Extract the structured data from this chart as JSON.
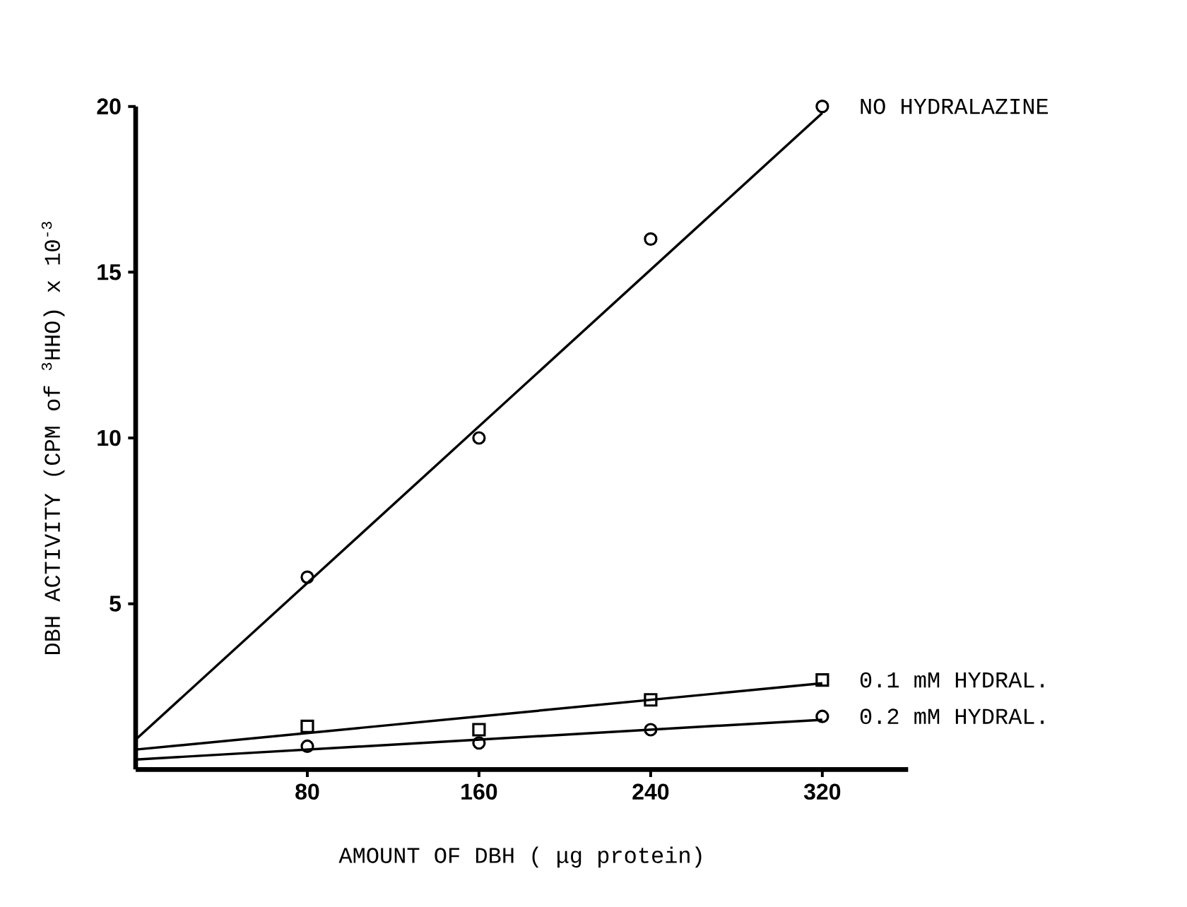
{
  "chart_data": {
    "type": "scatter",
    "xlabel": "AMOUNT OF DBH ( μg protein)",
    "ylabel": "DBH ACTIVITY (CPM of $^{3}$HHO) x 10$^{-3}$",
    "xlim": [
      0,
      360
    ],
    "ylim": [
      0,
      20
    ],
    "xticks": [
      80,
      160,
      240,
      320
    ],
    "yticks": [
      5,
      10,
      15,
      20
    ],
    "series": [
      {
        "name": "NO HYDRALAZINE",
        "marker": "circle",
        "color": "#000000",
        "x": [
          80,
          160,
          240,
          320
        ],
        "values": [
          5.8,
          10,
          16,
          20
        ]
      },
      {
        "name": "0.1 mM HYDRAL.",
        "marker": "square",
        "color": "#000000",
        "x": [
          80,
          160,
          240,
          320
        ],
        "values": [
          1.3,
          1.2,
          2.1,
          2.7
        ]
      },
      {
        "name": "0.2 mM HYDRAL.",
        "marker": "circle",
        "color": "#000000",
        "x": [
          80,
          160,
          240,
          320
        ],
        "values": [
          0.7,
          0.8,
          1.2,
          1.6
        ]
      },
      {
        "type": "line",
        "marker": "none",
        "color": "#000000",
        "x": [
          0,
          320
        ],
        "values": [
          0.9,
          19.8
        ]
      },
      {
        "type": "line",
        "marker": "none",
        "color": "#000000",
        "x": [
          0,
          320
        ],
        "values": [
          0.6,
          2.6
        ]
      },
      {
        "type": "line",
        "marker": "none",
        "color": "#000000",
        "x": [
          0,
          320
        ],
        "values": [
          0.3,
          1.5
        ]
      }
    ]
  }
}
